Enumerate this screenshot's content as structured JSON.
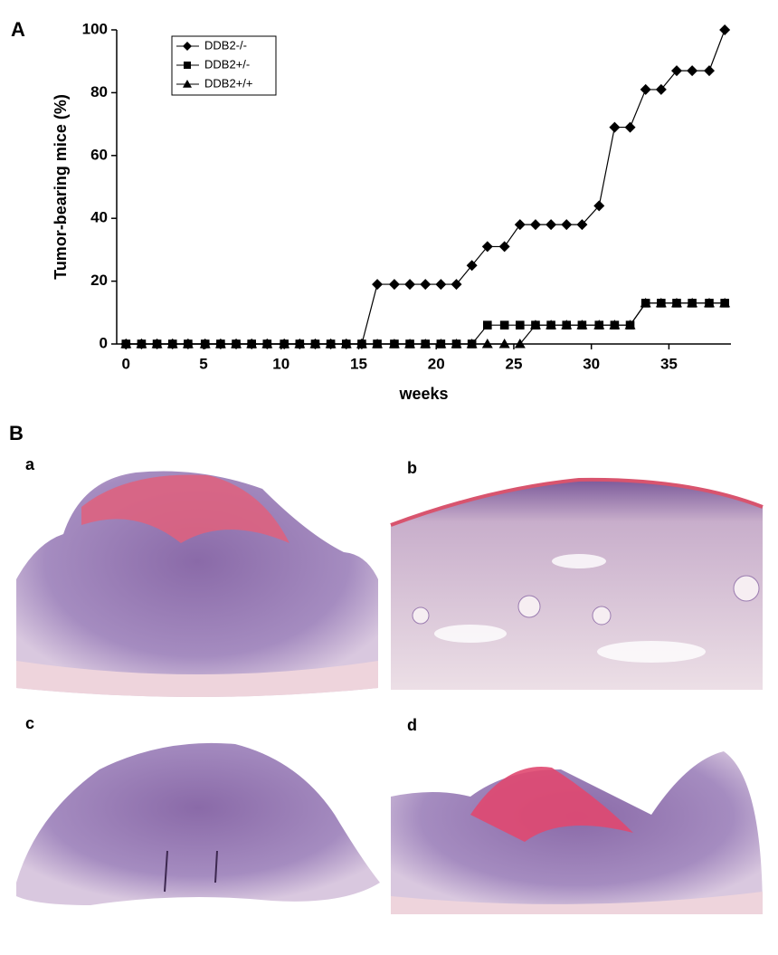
{
  "chart_data": {
    "type": "line",
    "panel_label": "A",
    "x_label": "weeks",
    "y_label": "Tumor-bearing mice (%)",
    "x": [
      0,
      1,
      2,
      3,
      4,
      5.1,
      6.1,
      7.1,
      8.1,
      9.1,
      10.2,
      11.2,
      12.2,
      13.2,
      14.2,
      15.2,
      16.2,
      17.3,
      18.3,
      19.3,
      20.3,
      21.3,
      22.3,
      23.3,
      24.4,
      25.4,
      26.4,
      27.4,
      28.4,
      29.4,
      30.5,
      31.5,
      32.5,
      33.5,
      34.5,
      35.5,
      36.5,
      37.6,
      38.6
    ],
    "series": [
      {
        "name": "DDB2-/-",
        "color": "#000000",
        "marker": "diamond",
        "values": [
          0,
          0,
          0,
          0,
          0,
          0,
          0,
          0,
          0,
          0,
          0,
          0,
          0,
          0,
          0,
          0,
          19,
          19,
          19,
          19,
          19,
          19,
          25,
          31,
          31,
          38,
          38,
          38,
          38,
          38,
          44,
          69,
          69,
          81,
          81,
          87,
          87,
          87,
          100
        ]
      },
      {
        "name": "DDB2+/-",
        "color": "#000000",
        "marker": "square",
        "values": [
          0,
          0,
          0,
          0,
          0,
          0,
          0,
          0,
          0,
          0,
          0,
          0,
          0,
          0,
          0,
          0,
          0,
          0,
          0,
          0,
          0,
          0,
          0,
          6,
          6,
          6,
          6,
          6,
          6,
          6,
          6,
          6,
          6,
          13,
          13,
          13,
          13,
          13,
          13
        ]
      },
      {
        "name": "DDB2+/+",
        "color": "#000000",
        "marker": "triangle",
        "values": [
          0,
          0,
          0,
          0,
          0,
          0,
          0,
          0,
          0,
          0,
          0,
          0,
          0,
          0,
          0,
          0,
          0,
          0,
          0,
          0,
          0,
          0,
          0,
          0,
          0,
          0,
          6,
          6,
          6,
          6,
          6,
          6,
          6,
          13,
          13,
          13,
          13,
          13,
          13
        ]
      }
    ],
    "xlim": [
      -0.6,
      39
    ],
    "xticks": [
      0,
      5,
      10,
      15,
      20,
      25,
      30,
      35
    ],
    "ylim": [
      0,
      100
    ],
    "yticks": [
      0,
      20,
      40,
      60,
      80,
      100
    ],
    "grid": false,
    "legend": "upper-left"
  },
  "panel_b": {
    "label": "B",
    "images": [
      "a",
      "b",
      "c",
      "d"
    ]
  }
}
